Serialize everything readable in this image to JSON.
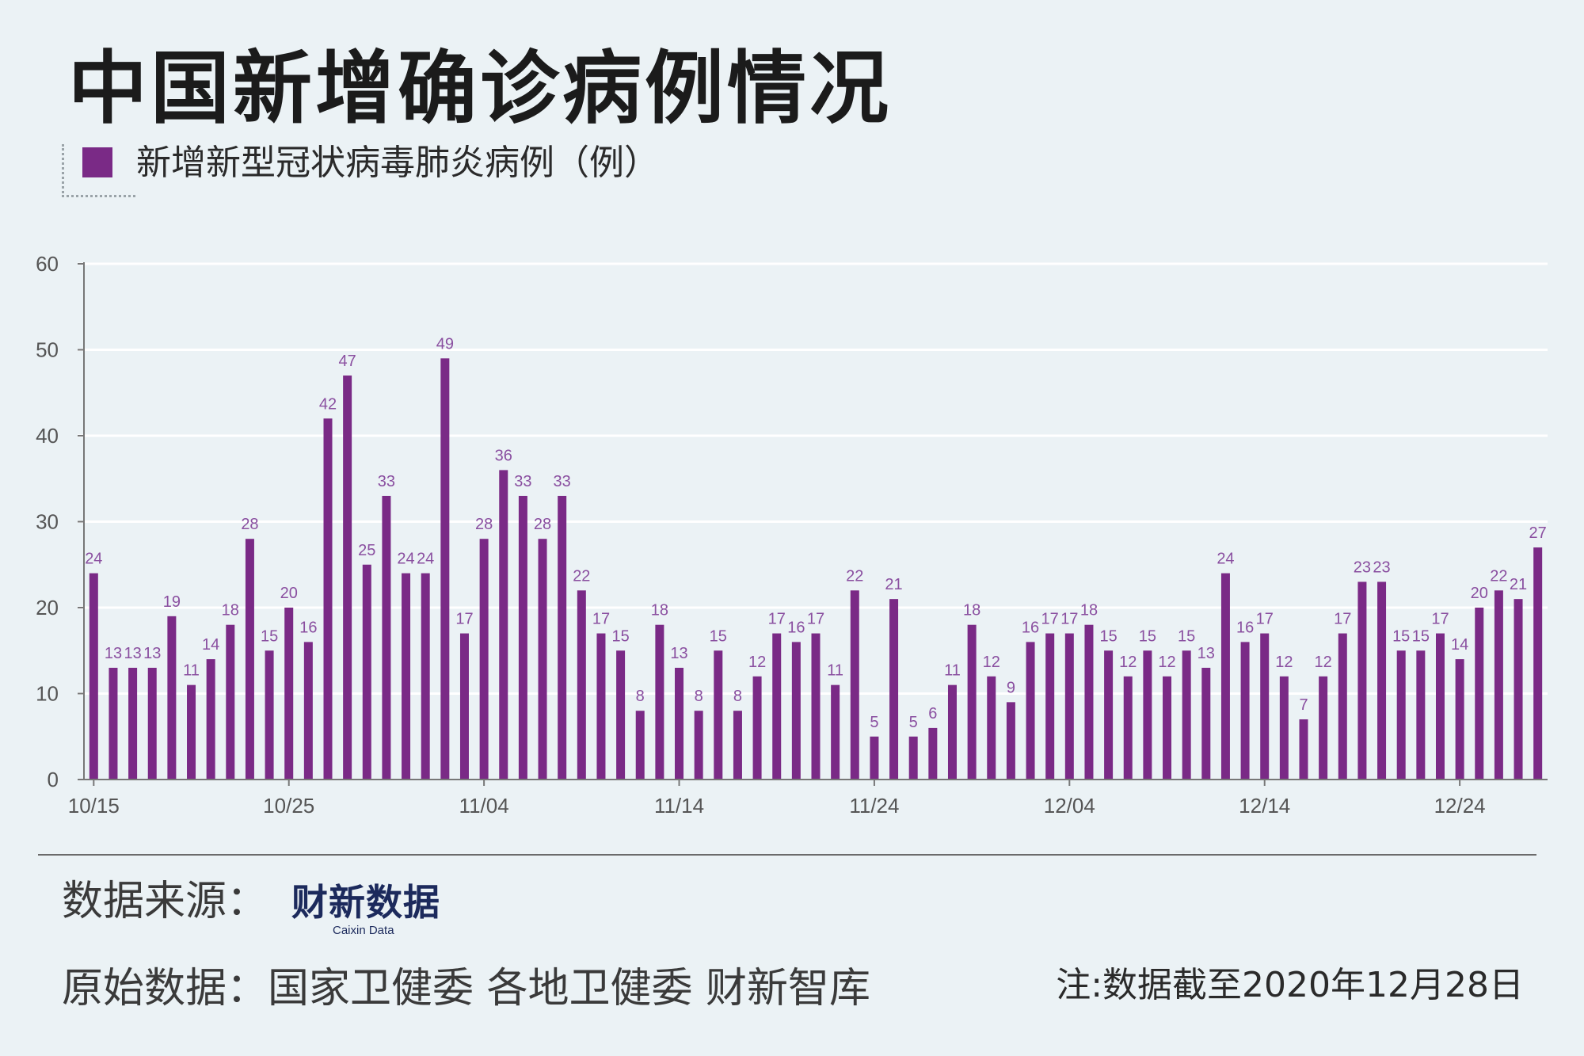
{
  "title": "中国新增确诊病例情况",
  "legend_label": "新增新型冠状病毒肺炎病例（例）",
  "source_label": "数据来源：",
  "logo": {
    "name": "财新数据",
    "sub": "Caixin Data"
  },
  "original_data": "原始数据：国家卫健委  各地卫健委  财新智库",
  "note": "注:数据截至2020年12月28日",
  "colors": {
    "bar": "#7a2a86",
    "value_label": "#8a4fa0",
    "grid": "#ffffff",
    "background": "#ebf2f5"
  },
  "chart_data": {
    "type": "bar",
    "title": "中国新增确诊病例情况",
    "ylim": [
      0,
      60
    ],
    "yticks": [
      0,
      10,
      20,
      30,
      40,
      50,
      60
    ],
    "grid": true,
    "legend_position": "top-left",
    "x_tick_labels": [
      {
        "index": 0,
        "label": "10/15"
      },
      {
        "index": 10,
        "label": "10/25"
      },
      {
        "index": 20,
        "label": "11/04"
      },
      {
        "index": 30,
        "label": "11/14"
      },
      {
        "index": 40,
        "label": "11/24"
      },
      {
        "index": 50,
        "label": "12/04"
      },
      {
        "index": 60,
        "label": "12/14"
      },
      {
        "index": 70,
        "label": "12/24"
      }
    ],
    "series": [
      {
        "name": "新增新型冠状病毒肺炎病例（例）",
        "values": [
          24,
          13,
          13,
          13,
          19,
          11,
          14,
          18,
          28,
          15,
          20,
          16,
          42,
          47,
          25,
          33,
          24,
          24,
          49,
          17,
          28,
          36,
          33,
          28,
          33,
          22,
          17,
          15,
          8,
          18,
          13,
          8,
          15,
          8,
          12,
          17,
          16,
          17,
          11,
          22,
          5,
          21,
          5,
          6,
          11,
          18,
          12,
          9,
          16,
          17,
          17,
          18,
          15,
          12,
          15,
          12,
          15,
          13,
          24,
          16,
          17,
          12,
          7,
          12,
          17,
          23,
          23,
          15,
          15,
          17,
          14,
          20,
          22,
          21,
          27
        ]
      }
    ]
  }
}
